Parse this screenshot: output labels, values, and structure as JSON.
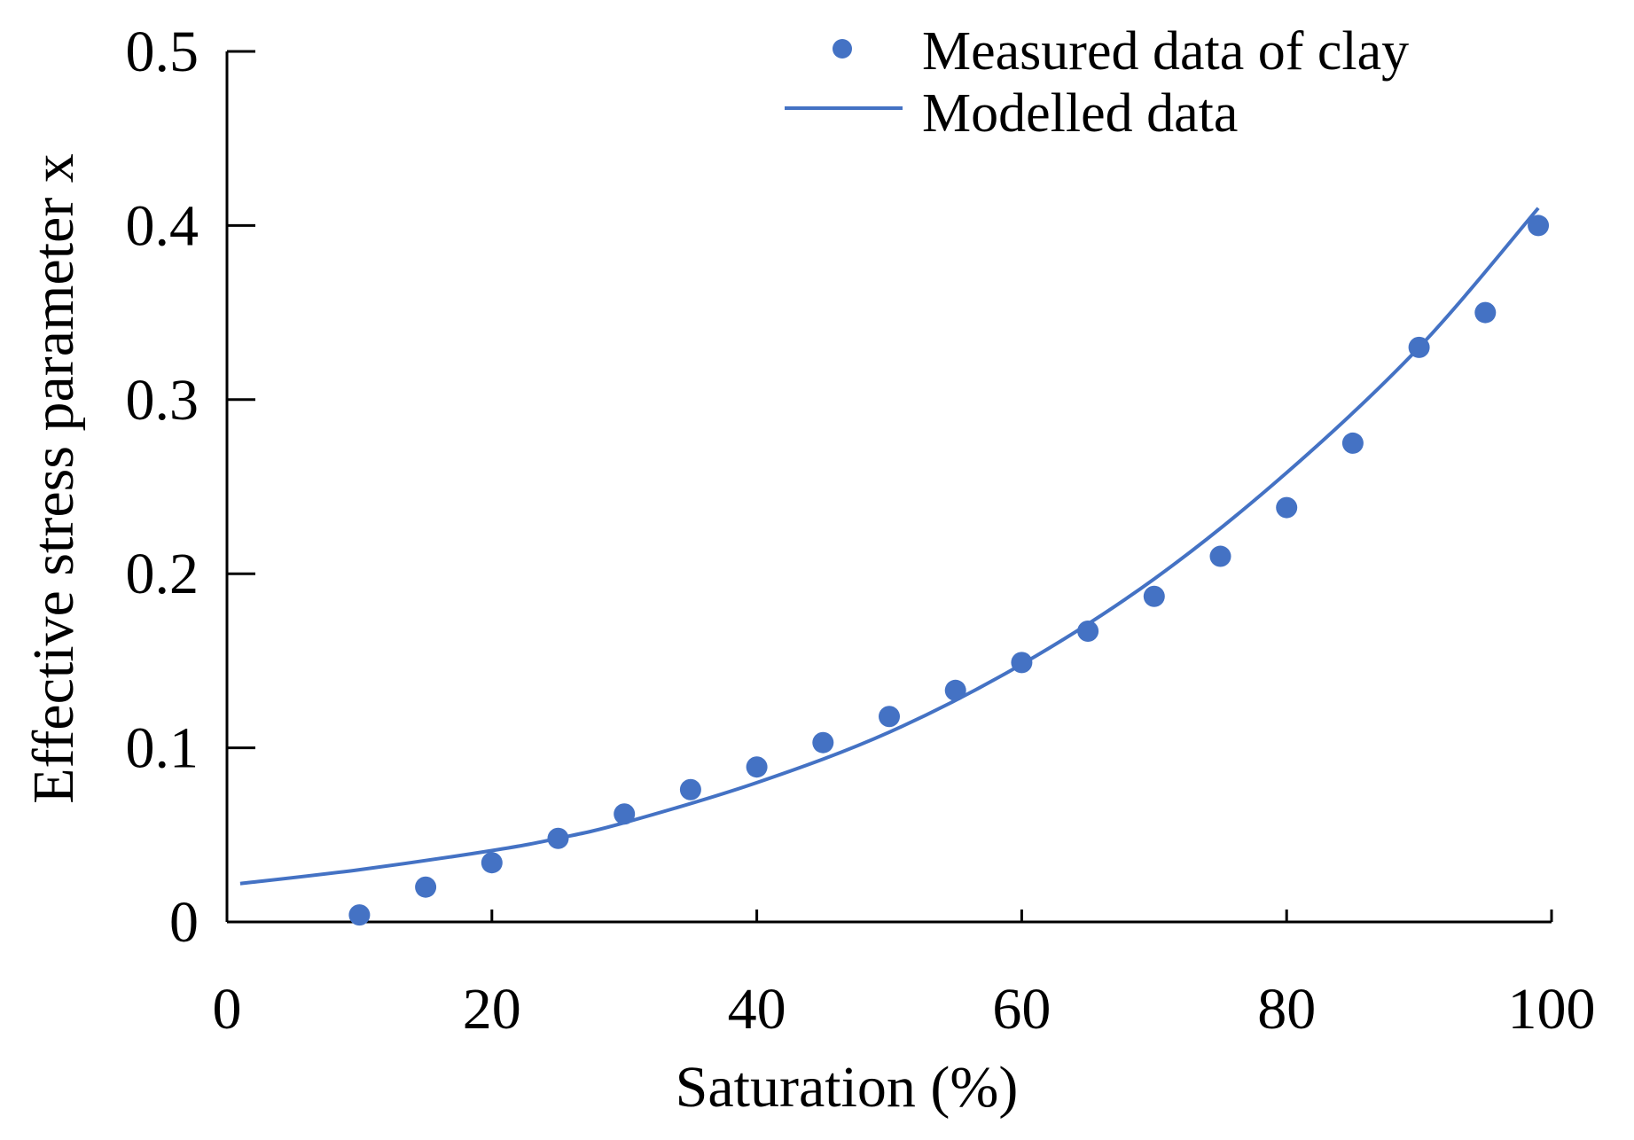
{
  "chart_data": {
    "type": "scatter",
    "title": "",
    "xlabel": "Saturation (%)",
    "ylabel": "Effective stress parameter x",
    "xlim": [
      0,
      100
    ],
    "ylim": [
      0,
      0.5
    ],
    "xticks": [
      0,
      20,
      40,
      60,
      80,
      100
    ],
    "xtick_labels": [
      "0",
      "20",
      "40",
      "60",
      "80",
      "100"
    ],
    "yticks": [
      0,
      0.1,
      0.2,
      0.3,
      0.4,
      0.5
    ],
    "ytick_labels": [
      "0",
      "0.1",
      "0.2",
      "0.3",
      "0.4",
      "0.5"
    ],
    "grid": false,
    "legend_position": "top-right",
    "series": [
      {
        "name": "Measured data of clay",
        "kind": "scatter",
        "color": "#4472C4",
        "x": [
          10,
          15,
          20,
          25,
          30,
          35,
          40,
          45,
          50,
          55,
          60,
          65,
          70,
          75,
          80,
          85,
          90,
          95,
          99
        ],
        "y": [
          0.004,
          0.02,
          0.034,
          0.048,
          0.062,
          0.076,
          0.089,
          0.103,
          0.118,
          0.133,
          0.149,
          0.167,
          0.187,
          0.21,
          0.238,
          0.275,
          0.33,
          0.35,
          0.4
        ]
      },
      {
        "name": "Modelled data",
        "kind": "line",
        "color": "#4472C4",
        "x": [
          1,
          10,
          20,
          25,
          30,
          40,
          50,
          60,
          70,
          80,
          90,
          99
        ],
        "y": [
          0.022,
          0.03,
          0.041,
          0.048,
          0.057,
          0.08,
          0.109,
          0.148,
          0.197,
          0.258,
          0.33,
          0.41
        ]
      }
    ]
  }
}
